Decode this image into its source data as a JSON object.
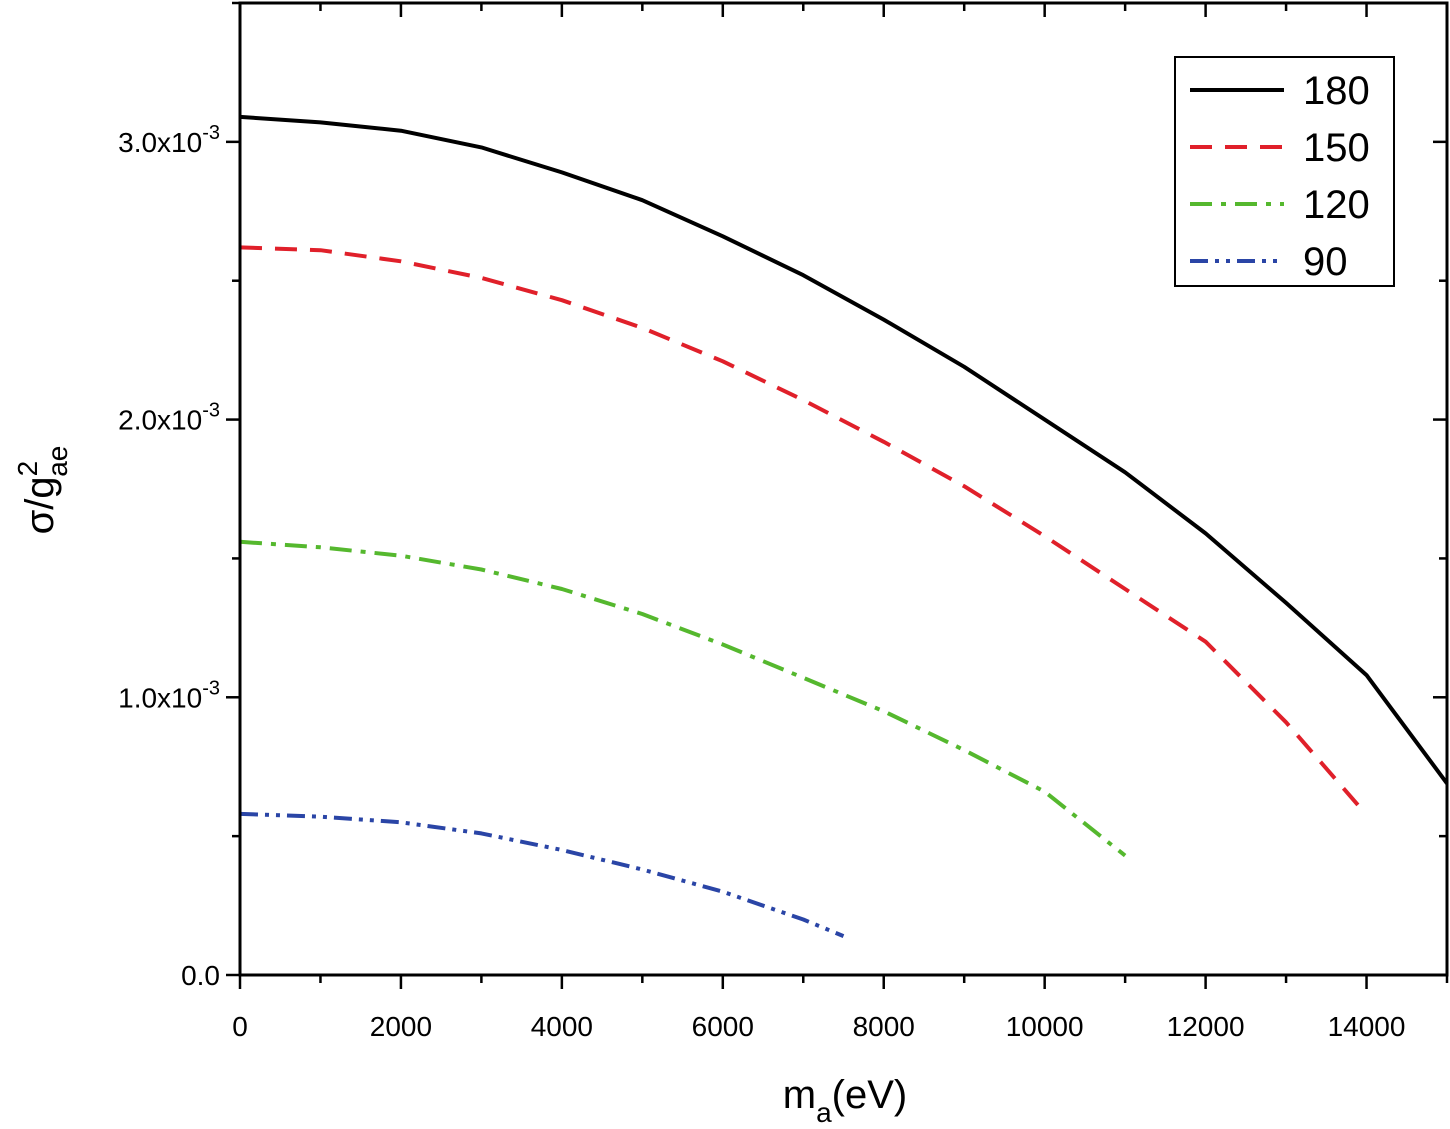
{
  "chart_data": {
    "type": "line",
    "xlabel": {
      "main": "m",
      "sub": "a",
      "rest": "(eV)"
    },
    "ylabel": {
      "main": "σ/g",
      "sup": "2",
      "sub": "ae"
    },
    "xlim": [
      0,
      15000
    ],
    "ylim": [
      0,
      0.0035
    ],
    "x_ticks": [
      0,
      2000,
      4000,
      6000,
      8000,
      10000,
      12000,
      14000
    ],
    "x_tick_labels": [
      "0",
      "2000",
      "4000",
      "6000",
      "8000",
      "10000",
      "12000",
      "14000"
    ],
    "y_ticks": [
      0,
      0.001,
      0.002,
      0.003
    ],
    "y_tick_labels": [
      {
        "mantissa": "0.0",
        "exp": ""
      },
      {
        "mantissa": "1.0x10",
        "exp": "-3"
      },
      {
        "mantissa": "2.0x10",
        "exp": "-3"
      },
      {
        "mantissa": "3.0x10",
        "exp": "-3"
      }
    ],
    "grid": false,
    "legend_position": "top-right",
    "series": [
      {
        "name": "180",
        "color": "#000000",
        "style": "solid",
        "x": [
          0,
          1000,
          2000,
          3000,
          4000,
          5000,
          6000,
          7000,
          8000,
          9000,
          10000,
          11000,
          12000,
          13000,
          14000,
          15000
        ],
        "y": [
          0.00309,
          0.00307,
          0.00304,
          0.00298,
          0.00289,
          0.00279,
          0.00266,
          0.00252,
          0.00236,
          0.00219,
          0.002,
          0.00181,
          0.00159,
          0.00134,
          0.00108,
          0.00069
        ]
      },
      {
        "name": "150",
        "color": "#e0202a",
        "style": "dash",
        "x": [
          0,
          1000,
          2000,
          3000,
          4000,
          5000,
          6000,
          7000,
          8000,
          9000,
          10000,
          11000,
          12000,
          13000,
          13900
        ],
        "y": [
          0.00262,
          0.00261,
          0.00257,
          0.00251,
          0.00243,
          0.00233,
          0.00221,
          0.00207,
          0.00192,
          0.00176,
          0.00158,
          0.00139,
          0.0012,
          0.00091,
          0.00061
        ]
      },
      {
        "name": "120",
        "color": "#55b82e",
        "style": "dashdot",
        "x": [
          0,
          1000,
          2000,
          3000,
          4000,
          5000,
          6000,
          7000,
          8000,
          9000,
          10000,
          11000
        ],
        "y": [
          0.00156,
          0.00154,
          0.00151,
          0.00146,
          0.00139,
          0.0013,
          0.00119,
          0.00107,
          0.00095,
          0.00081,
          0.00066,
          0.00043
        ]
      },
      {
        "name": "90",
        "color": "#2a45a6",
        "style": "dashdotdot",
        "x": [
          0,
          1000,
          2000,
          3000,
          4000,
          5000,
          6000,
          7000,
          7500
        ],
        "y": [
          0.00058,
          0.00057,
          0.00055,
          0.00051,
          0.00045,
          0.00038,
          0.0003,
          0.0002,
          0.00014
        ]
      }
    ]
  }
}
